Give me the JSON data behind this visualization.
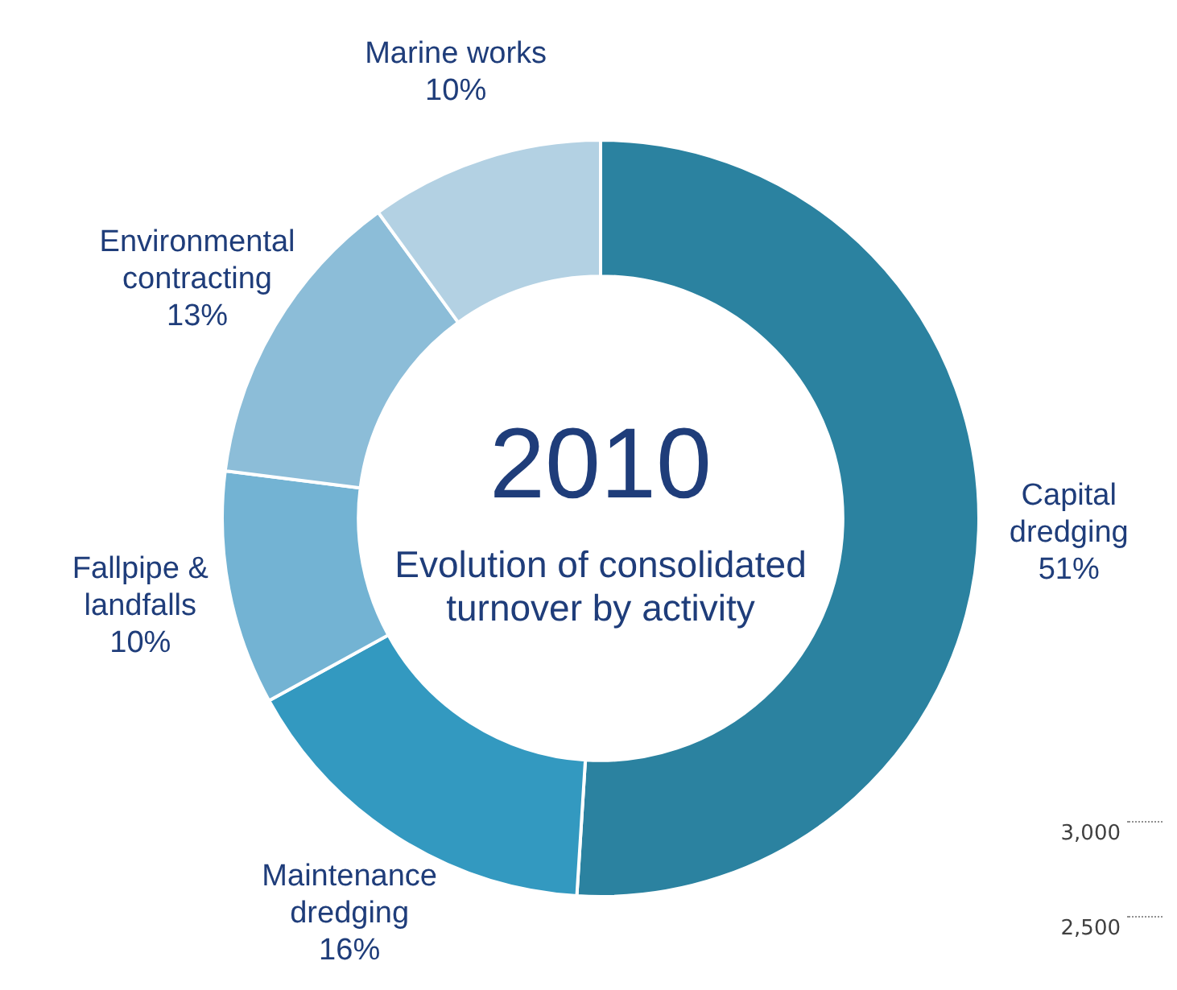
{
  "chart_data": {
    "type": "donut",
    "title": "2010",
    "subtitle": "Evolution of consolidated turnover by activity",
    "categories": [
      "Capital dredging",
      "Maintenance dredging",
      "Fallpipe & landfalls",
      "Environmental contracting",
      "Marine works"
    ],
    "values": [
      51,
      16,
      10,
      13,
      10
    ],
    "colors": [
      "#2b82a0",
      "#3399c0",
      "#73b3d3",
      "#8cbdd8",
      "#b3d1e3"
    ],
    "value_labels": [
      "51%",
      "16%",
      "10%",
      "13%",
      "10%"
    ],
    "legend": false,
    "annotations": [
      "3,000",
      "2,500"
    ]
  }
}
